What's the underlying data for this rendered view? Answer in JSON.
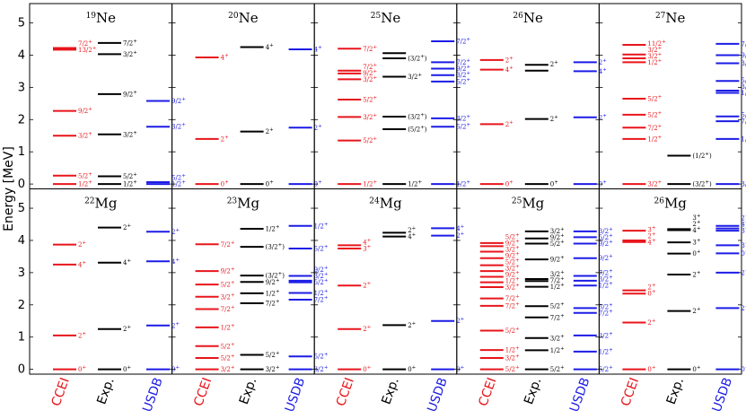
{
  "chart_data": {
    "type": "level-scheme",
    "ylabel": "Energy [MeV]",
    "ylim": [
      -0.15,
      5.6
    ],
    "yticks": [
      0,
      1,
      2,
      3,
      4,
      5
    ],
    "columns": [
      {
        "key": "cceI",
        "label": "CCEI",
        "color": "#e8151b"
      },
      {
        "key": "exp",
        "label": "Exp.",
        "color": "#000000"
      },
      {
        "key": "usdb",
        "label": "USDB",
        "color": "#1c1ce6"
      }
    ],
    "panels": [
      {
        "mass": "19",
        "element": "Ne",
        "cceI": [
          {
            "e": 0,
            "j": "1/2+"
          },
          {
            "e": 0.26,
            "j": "5/2+"
          },
          {
            "e": 1.5,
            "j": "3/2+"
          },
          {
            "e": 2.27,
            "j": "9/2+"
          },
          {
            "e": 4.17,
            "j": "13/2+"
          },
          {
            "e": 4.22,
            "j": "7/2+"
          }
        ],
        "exp": [
          {
            "e": 0,
            "j": "1/2+"
          },
          {
            "e": 0.24,
            "j": "5/2+"
          },
          {
            "e": 1.54,
            "j": "3/2+"
          },
          {
            "e": 2.79,
            "j": "9/2+"
          },
          {
            "e": 4.03,
            "j": "3/2+"
          },
          {
            "e": 4.38,
            "j": "7/2+"
          }
        ],
        "usdb": [
          {
            "e": 0,
            "j": "1/2+"
          },
          {
            "e": 0.06,
            "j": "5/2+"
          },
          {
            "e": 1.78,
            "j": "3/2+"
          },
          {
            "e": 2.58,
            "j": "9/2+"
          }
        ]
      },
      {
        "mass": "20",
        "element": "Ne",
        "cceI": [
          {
            "e": 0,
            "j": "0+"
          },
          {
            "e": 1.4,
            "j": "2+"
          },
          {
            "e": 3.93,
            "j": "4+"
          }
        ],
        "exp": [
          {
            "e": 0,
            "j": "0+"
          },
          {
            "e": 1.63,
            "j": "2+"
          },
          {
            "e": 4.25,
            "j": "4+"
          }
        ],
        "usdb": [
          {
            "e": 0,
            "j": "0+"
          },
          {
            "e": 1.75,
            "j": "2+"
          },
          {
            "e": 4.18,
            "j": "4+"
          }
        ]
      },
      {
        "mass": "25",
        "element": "Ne",
        "cceI": [
          {
            "e": 0,
            "j": "1/2+"
          },
          {
            "e": 1.35,
            "j": "5/2+"
          },
          {
            "e": 2.08,
            "j": "3/2+"
          },
          {
            "e": 2.62,
            "j": "5/2+"
          },
          {
            "e": 3.25,
            "j": "3/2+"
          },
          {
            "e": 3.43,
            "j": "9/2+"
          },
          {
            "e": 3.52,
            "j": "7/2+"
          },
          {
            "e": 4.2,
            "j": "7/2+"
          }
        ],
        "exp": [
          {
            "e": 0,
            "j": "1/2+"
          },
          {
            "e": 1.7,
            "j": "(5/2+)"
          },
          {
            "e": 2.09,
            "j": "(3/2+)"
          },
          {
            "e": 3.33,
            "j": "3/2+"
          },
          {
            "e": 3.9,
            "j": "(3/2+)"
          },
          {
            "e": 4.06,
            "j": ""
          }
        ],
        "usdb": [
          {
            "e": 0,
            "j": "1/2+"
          },
          {
            "e": 1.78,
            "j": "5/2+"
          },
          {
            "e": 2.04,
            "j": "3/2+"
          },
          {
            "e": 3.18,
            "j": "5/2+"
          },
          {
            "e": 3.38,
            "j": "3/2+"
          },
          {
            "e": 3.58,
            "j": "9/2+"
          },
          {
            "e": 3.78,
            "j": "7/2+"
          },
          {
            "e": 4.43,
            "j": "7/2+"
          }
        ]
      },
      {
        "mass": "26",
        "element": "Ne",
        "cceI": [
          {
            "e": 0,
            "j": "0+"
          },
          {
            "e": 1.86,
            "j": "2+"
          },
          {
            "e": 3.55,
            "j": "4+"
          },
          {
            "e": 3.85,
            "j": "2+"
          }
        ],
        "exp": [
          {
            "e": 0,
            "j": "0+"
          },
          {
            "e": 2.02,
            "j": "2+"
          },
          {
            "e": 3.52,
            "j": ""
          },
          {
            "e": 3.7,
            "j": "2+"
          }
        ],
        "usdb": [
          {
            "e": 0,
            "j": "0+"
          },
          {
            "e": 2.07,
            "j": "2+"
          },
          {
            "e": 3.5,
            "j": "4+"
          },
          {
            "e": 3.78,
            "j": "2+"
          }
        ]
      },
      {
        "mass": "27",
        "element": "Ne",
        "cceI": [
          {
            "e": 0,
            "j": "3/2+"
          },
          {
            "e": 1.4,
            "j": "1/2+"
          },
          {
            "e": 1.75,
            "j": "7/2+"
          },
          {
            "e": 2.15,
            "j": "5/2+"
          },
          {
            "e": 2.65,
            "j": "5/2+"
          },
          {
            "e": 3.78,
            "j": "1/2+"
          },
          {
            "e": 3.9,
            "j": "3/2+"
          },
          {
            "e": 4.02,
            "j": "3/2+"
          },
          {
            "e": 4.32,
            "j": "11/2+"
          }
        ],
        "exp": [
          {
            "e": 0,
            "j": "(3/2+)"
          },
          {
            "e": 0.88,
            "j": "(1/2+)"
          }
        ],
        "usdb": [
          {
            "e": 0,
            "j": "3/2+"
          },
          {
            "e": 1.4,
            "j": "1/2+"
          },
          {
            "e": 1.95,
            "j": "7/2+"
          },
          {
            "e": 2.1,
            "j": "5/2+"
          },
          {
            "e": 2.83,
            "j": "1/2+"
          },
          {
            "e": 2.9,
            "j": "3/2+"
          },
          {
            "e": 3.2,
            "j": "5/2+"
          },
          {
            "e": 3.75,
            "j": "3/2+"
          },
          {
            "e": 4.0,
            "j": "9/2+"
          },
          {
            "e": 4.35,
            "j": "7/2+"
          }
        ]
      },
      {
        "mass": "22",
        "element": "Mg",
        "cceI": [
          {
            "e": 0,
            "j": "0+"
          },
          {
            "e": 1.05,
            "j": "2+"
          },
          {
            "e": 3.25,
            "j": "4+"
          },
          {
            "e": 3.87,
            "j": "2+"
          }
        ],
        "exp": [
          {
            "e": 0,
            "j": "0+"
          },
          {
            "e": 1.25,
            "j": "2+"
          },
          {
            "e": 3.31,
            "j": "4+"
          },
          {
            "e": 4.4,
            "j": "2+"
          }
        ],
        "usdb": [
          {
            "e": 0,
            "j": "0+"
          },
          {
            "e": 1.36,
            "j": "2+"
          },
          {
            "e": 3.35,
            "j": "4+"
          },
          {
            "e": 4.27,
            "j": "2+"
          }
        ]
      },
      {
        "mass": "23",
        "element": "Mg",
        "cceI": [
          {
            "e": 0,
            "j": "3/2+"
          },
          {
            "e": 0.35,
            "j": "5/2+"
          },
          {
            "e": 0.72,
            "j": "5/2+"
          },
          {
            "e": 1.3,
            "j": "1/2+"
          },
          {
            "e": 1.87,
            "j": "7/2+"
          },
          {
            "e": 2.25,
            "j": "3/2+"
          },
          {
            "e": 2.63,
            "j": "5/2+"
          },
          {
            "e": 3.05,
            "j": "9/2+"
          },
          {
            "e": 3.88,
            "j": "7/2+"
          }
        ],
        "exp": [
          {
            "e": 0,
            "j": "3/2+"
          },
          {
            "e": 0.45,
            "j": "5/2+"
          },
          {
            "e": 2.05,
            "j": "7/2+"
          },
          {
            "e": 2.36,
            "j": "1/2+"
          },
          {
            "e": 2.71,
            "j": "9/2+"
          },
          {
            "e": 2.91,
            "j": "(3/2+)"
          },
          {
            "e": 3.8,
            "j": "(3/2+)"
          },
          {
            "e": 4.36,
            "j": "1/2+"
          }
        ],
        "usdb": [
          {
            "e": 0,
            "j": "3/2+"
          },
          {
            "e": 0.4,
            "j": "5/2+"
          },
          {
            "e": 2.16,
            "j": "7/2+"
          },
          {
            "e": 2.37,
            "j": "1/2+"
          },
          {
            "e": 2.7,
            "j": "5/2+"
          },
          {
            "e": 2.75,
            "j": "3/2+"
          },
          {
            "e": 2.9,
            "j": "9/2+"
          },
          {
            "e": 3.75,
            "j": "5/2+"
          },
          {
            "e": 4.45,
            "j": "1/2+"
          }
        ]
      },
      {
        "mass": "24",
        "element": "Mg",
        "cceI": [
          {
            "e": 0,
            "j": "0+"
          },
          {
            "e": 1.25,
            "j": "2+"
          },
          {
            "e": 2.6,
            "j": "2+"
          },
          {
            "e": 3.75,
            "j": "3+"
          },
          {
            "e": 3.85,
            "j": "4+"
          }
        ],
        "exp": [
          {
            "e": 0,
            "j": "0+"
          },
          {
            "e": 1.37,
            "j": "2+"
          },
          {
            "e": 4.12,
            "j": "4+"
          },
          {
            "e": 4.24,
            "j": "2+"
          }
        ],
        "usdb": [
          {
            "e": 0,
            "j": "0+"
          },
          {
            "e": 1.5,
            "j": "2+"
          },
          {
            "e": 4.15,
            "j": "2+"
          },
          {
            "e": 4.38,
            "j": "4+"
          }
        ]
      },
      {
        "mass": "25",
        "element": "Mg",
        "cceI": [
          {
            "e": 0,
            "j": "5/2+"
          },
          {
            "e": 0.35,
            "j": "3/2+"
          },
          {
            "e": 0.6,
            "j": "1/2+"
          },
          {
            "e": 1.2,
            "j": "5/2+"
          },
          {
            "e": 1.97,
            "j": "7/2+"
          },
          {
            "e": 2.2,
            "j": "7/2+"
          },
          {
            "e": 2.55,
            "j": "3/2+"
          },
          {
            "e": 2.7,
            "j": "1/2+"
          },
          {
            "e": 2.87,
            "j": "9/2+"
          },
          {
            "e": 3.05,
            "j": "3/2+"
          },
          {
            "e": 3.23,
            "j": "5/2+"
          },
          {
            "e": 3.45,
            "j": "9/2+"
          },
          {
            "e": 3.65,
            "j": "3/2+"
          },
          {
            "e": 3.82,
            "j": "9/2+"
          },
          {
            "e": 3.92,
            "j": "5/2+"
          }
        ],
        "exp": [
          {
            "e": 0,
            "j": "5/2+"
          },
          {
            "e": 0.59,
            "j": "1/2+"
          },
          {
            "e": 0.97,
            "j": "3/2+"
          },
          {
            "e": 1.61,
            "j": "7/2+"
          },
          {
            "e": 1.96,
            "j": "5/2+"
          },
          {
            "e": 2.56,
            "j": "1/2+"
          },
          {
            "e": 2.74,
            "j": "7/2+"
          },
          {
            "e": 2.8,
            "j": "3/2+"
          },
          {
            "e": 3.41,
            "j": "9/2+"
          },
          {
            "e": 3.9,
            "j": "5/2+"
          },
          {
            "e": 4.06,
            "j": "9/2+"
          },
          {
            "e": 4.28,
            "j": "3/2+"
          }
        ],
        "usdb": [
          {
            "e": 0,
            "j": "5/2+"
          },
          {
            "e": 0.55,
            "j": "1/2+"
          },
          {
            "e": 1.05,
            "j": "3/2+"
          },
          {
            "e": 1.75,
            "j": "7/2+"
          },
          {
            "e": 1.9,
            "j": "5/2+"
          },
          {
            "e": 2.6,
            "j": "1/2+"
          },
          {
            "e": 2.75,
            "j": "3/2+"
          },
          {
            "e": 2.9,
            "j": "7/2+"
          },
          {
            "e": 3.45,
            "j": "9/2+"
          },
          {
            "e": 3.9,
            "j": "9/2+"
          },
          {
            "e": 4.1,
            "j": "5/2+"
          },
          {
            "e": 4.28,
            "j": "3/2+"
          }
        ]
      },
      {
        "mass": "26",
        "element": "Mg",
        "cceI": [
          {
            "e": 0,
            "j": "0+"
          },
          {
            "e": 1.45,
            "j": "2+"
          },
          {
            "e": 2.35,
            "j": "0+"
          },
          {
            "e": 2.45,
            "j": "2+"
          },
          {
            "e": 3.95,
            "j": "4+"
          },
          {
            "e": 4.0,
            "j": "2+"
          },
          {
            "e": 4.3,
            "j": "3+"
          }
        ],
        "exp": [
          {
            "e": 0,
            "j": "0+"
          },
          {
            "e": 1.81,
            "j": "2+"
          },
          {
            "e": 2.94,
            "j": "2+"
          },
          {
            "e": 3.59,
            "j": "0+"
          },
          {
            "e": 3.94,
            "j": "3+"
          },
          {
            "e": 4.32,
            "j": "4+"
          },
          {
            "e": 4.33,
            "j": "2+"
          },
          {
            "e": 4.35,
            "j": "3+"
          }
        ],
        "usdb": [
          {
            "e": 0,
            "j": "0+"
          },
          {
            "e": 1.9,
            "j": "2+"
          },
          {
            "e": 3.0,
            "j": "2+"
          },
          {
            "e": 3.6,
            "j": "0+"
          },
          {
            "e": 3.85,
            "j": "3+"
          },
          {
            "e": 4.3,
            "j": "3+"
          },
          {
            "e": 4.37,
            "j": "4+"
          },
          {
            "e": 4.45,
            "j": "2+"
          }
        ]
      }
    ]
  }
}
